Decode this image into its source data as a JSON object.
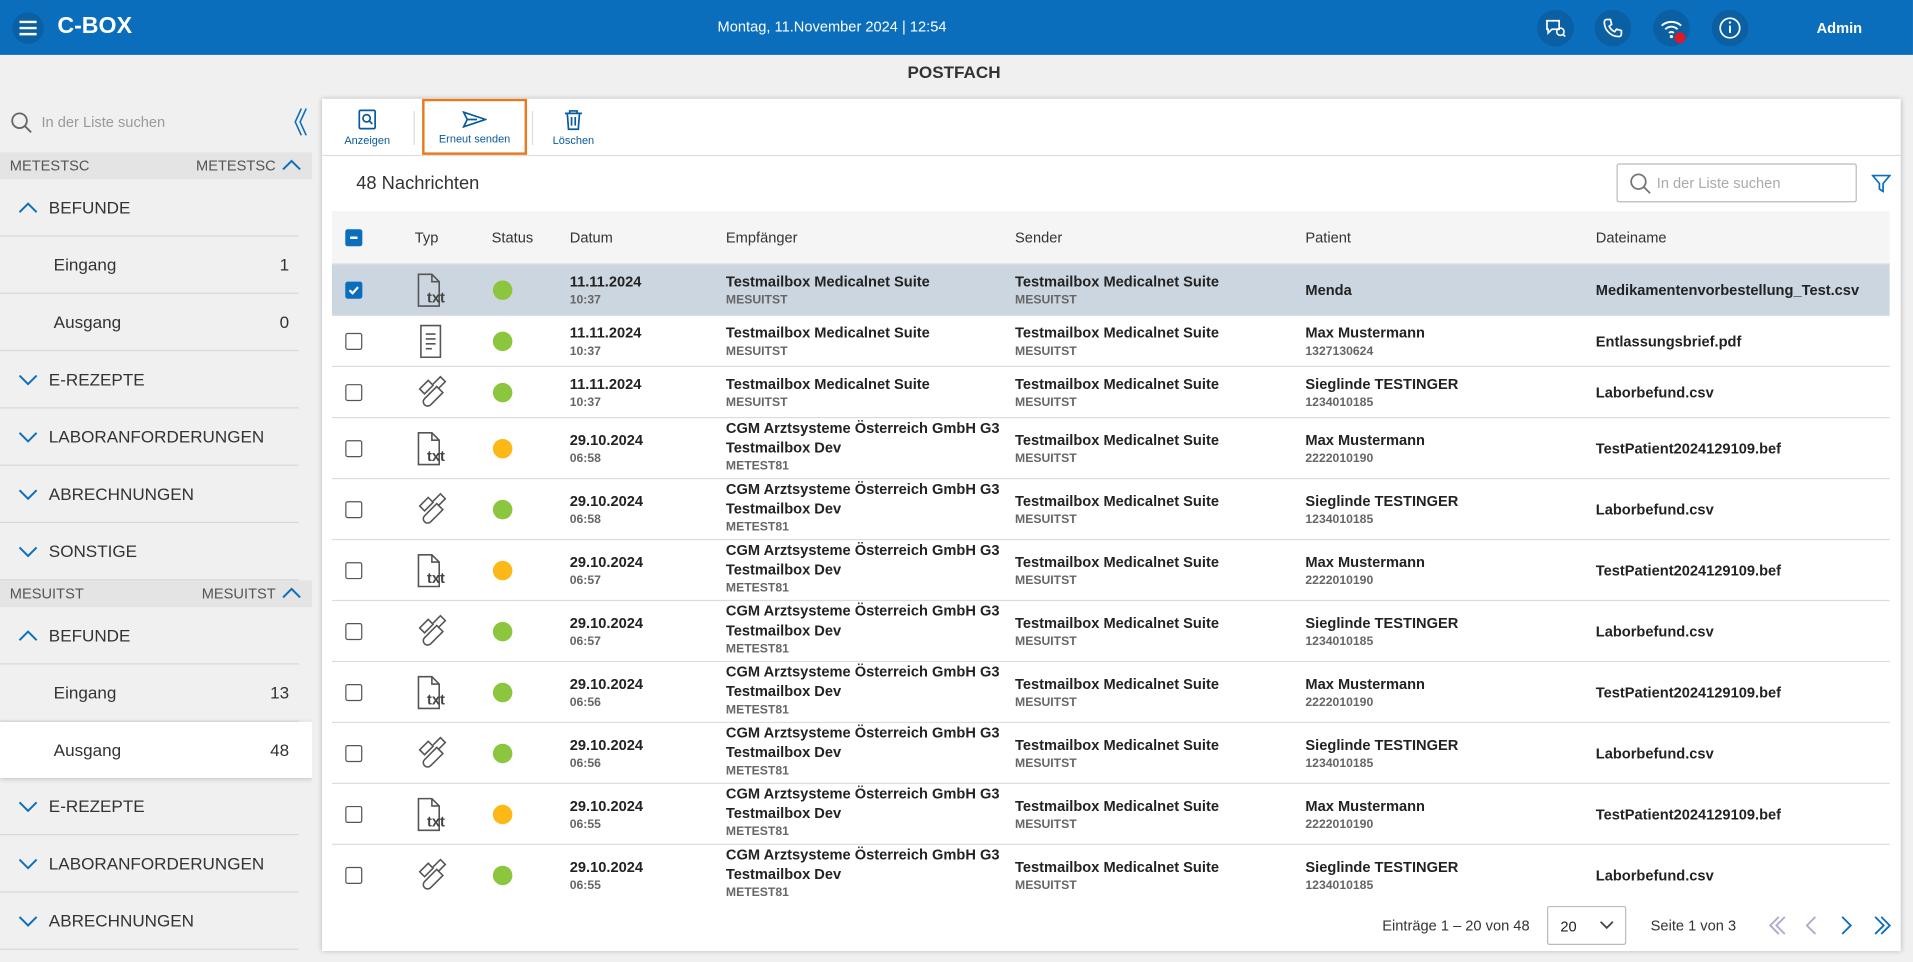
{
  "header": {
    "brand": "C-BOX",
    "datetime": "Montag, 11.November 2024 | 12:54",
    "user": "Admin"
  },
  "page_title": "POSTFACH",
  "sidebar": {
    "search_placeholder": "In der Liste suchen",
    "groups": [
      {
        "name": "METESTSC",
        "name_right": "METESTSC",
        "sections": [
          {
            "label": "BEFUNDE",
            "expanded": true,
            "items": [
              {
                "label": "Eingang",
                "count": 1,
                "selected": false
              },
              {
                "label": "Ausgang",
                "count": 0,
                "selected": false
              }
            ]
          },
          {
            "label": "E-REZEPTE",
            "expanded": false
          },
          {
            "label": "LABORANFORDERUNGEN",
            "expanded": false
          },
          {
            "label": "ABRECHNUNGEN",
            "expanded": false
          },
          {
            "label": "SONSTIGE",
            "expanded": false
          }
        ]
      },
      {
        "name": "MESUITST",
        "name_right": "MESUITST",
        "sections": [
          {
            "label": "BEFUNDE",
            "expanded": true,
            "items": [
              {
                "label": "Eingang",
                "count": 13,
                "selected": false
              },
              {
                "label": "Ausgang",
                "count": 48,
                "selected": true
              }
            ]
          },
          {
            "label": "E-REZEPTE",
            "expanded": false
          },
          {
            "label": "LABORANFORDERUNGEN",
            "expanded": false
          },
          {
            "label": "ABRECHNUNGEN",
            "expanded": false
          }
        ]
      }
    ]
  },
  "toolbar": {
    "buttons": [
      {
        "label": "Anzeigen",
        "icon": "view",
        "highlighted": false
      },
      {
        "label": "Erneut senden",
        "icon": "send",
        "highlighted": true
      },
      {
        "label": "Löschen",
        "icon": "delete",
        "highlighted": false
      }
    ]
  },
  "list": {
    "count_label": "48 Nachrichten",
    "search_placeholder": "In der Liste suchen",
    "columns": [
      "Typ",
      "Status",
      "Datum",
      "Empfänger",
      "Sender",
      "Patient",
      "Dateiname"
    ],
    "rows": [
      {
        "checked": true,
        "icon": "txt",
        "status": "#8cc63f",
        "date": "11.11.2024",
        "time": "10:37",
        "recipient": [
          "Testmailbox Medicalnet Suite"
        ],
        "recipient_id": "MESUITST",
        "sender": "Testmailbox Medicalnet Suite",
        "sender_id": "MESUITST",
        "patient": "Menda",
        "patient_id": null,
        "file": "Medikamentenvorbestellung_Test.csv"
      },
      {
        "checked": false,
        "icon": "document",
        "status": "#8cc63f",
        "date": "11.11.2024",
        "time": "10:37",
        "recipient": [
          "Testmailbox Medicalnet Suite"
        ],
        "recipient_id": "MESUITST",
        "sender": "Testmailbox Medicalnet Suite",
        "sender_id": "MESUITST",
        "patient": "Max Mustermann",
        "patient_id": "1327130624",
        "file": "Entlassungsbrief.pdf"
      },
      {
        "checked": false,
        "icon": "lab",
        "status": "#8cc63f",
        "date": "11.11.2024",
        "time": "10:37",
        "recipient": [
          "Testmailbox Medicalnet Suite"
        ],
        "recipient_id": "MESUITST",
        "sender": "Testmailbox Medicalnet Suite",
        "sender_id": "MESUITST",
        "patient": "Sieglinde TESTINGER",
        "patient_id": "1234010185",
        "file": "Laborbefund.csv"
      },
      {
        "checked": false,
        "icon": "txt",
        "status": "#fbb817",
        "date": "29.10.2024",
        "time": "06:58",
        "recipient": [
          "CGM Arztsysteme Österreich GmbH G3",
          "Testmailbox Dev"
        ],
        "recipient_id": "METEST81",
        "sender": "Testmailbox Medicalnet Suite",
        "sender_id": "MESUITST",
        "patient": "Max Mustermann",
        "patient_id": "2222010190",
        "file": "TestPatient2024129109.bef"
      },
      {
        "checked": false,
        "icon": "lab",
        "status": "#8cc63f",
        "date": "29.10.2024",
        "time": "06:58",
        "recipient": [
          "CGM Arztsysteme Österreich GmbH G3",
          "Testmailbox Dev"
        ],
        "recipient_id": "METEST81",
        "sender": "Testmailbox Medicalnet Suite",
        "sender_id": "MESUITST",
        "patient": "Sieglinde TESTINGER",
        "patient_id": "1234010185",
        "file": "Laborbefund.csv"
      },
      {
        "checked": false,
        "icon": "txt",
        "status": "#fbb817",
        "date": "29.10.2024",
        "time": "06:57",
        "recipient": [
          "CGM Arztsysteme Österreich GmbH G3",
          "Testmailbox Dev"
        ],
        "recipient_id": "METEST81",
        "sender": "Testmailbox Medicalnet Suite",
        "sender_id": "MESUITST",
        "patient": "Max Mustermann",
        "patient_id": "2222010190",
        "file": "TestPatient2024129109.bef"
      },
      {
        "checked": false,
        "icon": "lab",
        "status": "#8cc63f",
        "date": "29.10.2024",
        "time": "06:57",
        "recipient": [
          "CGM Arztsysteme Österreich GmbH G3",
          "Testmailbox Dev"
        ],
        "recipient_id": "METEST81",
        "sender": "Testmailbox Medicalnet Suite",
        "sender_id": "MESUITST",
        "patient": "Sieglinde TESTINGER",
        "patient_id": "1234010185",
        "file": "Laborbefund.csv"
      },
      {
        "checked": false,
        "icon": "txt",
        "status": "#8cc63f",
        "date": "29.10.2024",
        "time": "06:56",
        "recipient": [
          "CGM Arztsysteme Österreich GmbH G3",
          "Testmailbox Dev"
        ],
        "recipient_id": "METEST81",
        "sender": "Testmailbox Medicalnet Suite",
        "sender_id": "MESUITST",
        "patient": "Max Mustermann",
        "patient_id": "2222010190",
        "file": "TestPatient2024129109.bef"
      },
      {
        "checked": false,
        "icon": "lab",
        "status": "#8cc63f",
        "date": "29.10.2024",
        "time": "06:56",
        "recipient": [
          "CGM Arztsysteme Österreich GmbH G3",
          "Testmailbox Dev"
        ],
        "recipient_id": "METEST81",
        "sender": "Testmailbox Medicalnet Suite",
        "sender_id": "MESUITST",
        "patient": "Sieglinde TESTINGER",
        "patient_id": "1234010185",
        "file": "Laborbefund.csv"
      },
      {
        "checked": false,
        "icon": "txt",
        "status": "#fbb817",
        "date": "29.10.2024",
        "time": "06:55",
        "recipient": [
          "CGM Arztsysteme Österreich GmbH G3",
          "Testmailbox Dev"
        ],
        "recipient_id": "METEST81",
        "sender": "Testmailbox Medicalnet Suite",
        "sender_id": "MESUITST",
        "patient": "Max Mustermann",
        "patient_id": "2222010190",
        "file": "TestPatient2024129109.bef"
      },
      {
        "checked": false,
        "icon": "lab",
        "status": "#8cc63f",
        "date": "29.10.2024",
        "time": "06:55",
        "recipient": [
          "CGM Arztsysteme Österreich GmbH G3",
          "Testmailbox Dev"
        ],
        "recipient_id": "METEST81",
        "sender": "Testmailbox Medicalnet Suite",
        "sender_id": "MESUITST",
        "patient": "Sieglinde TESTINGER",
        "patient_id": "1234010185",
        "file": "Laborbefund.csv"
      }
    ]
  },
  "pagination": {
    "entries": "Einträge 1 – 20 von 48",
    "page_size": "20",
    "page": "Seite 1 von 3"
  }
}
